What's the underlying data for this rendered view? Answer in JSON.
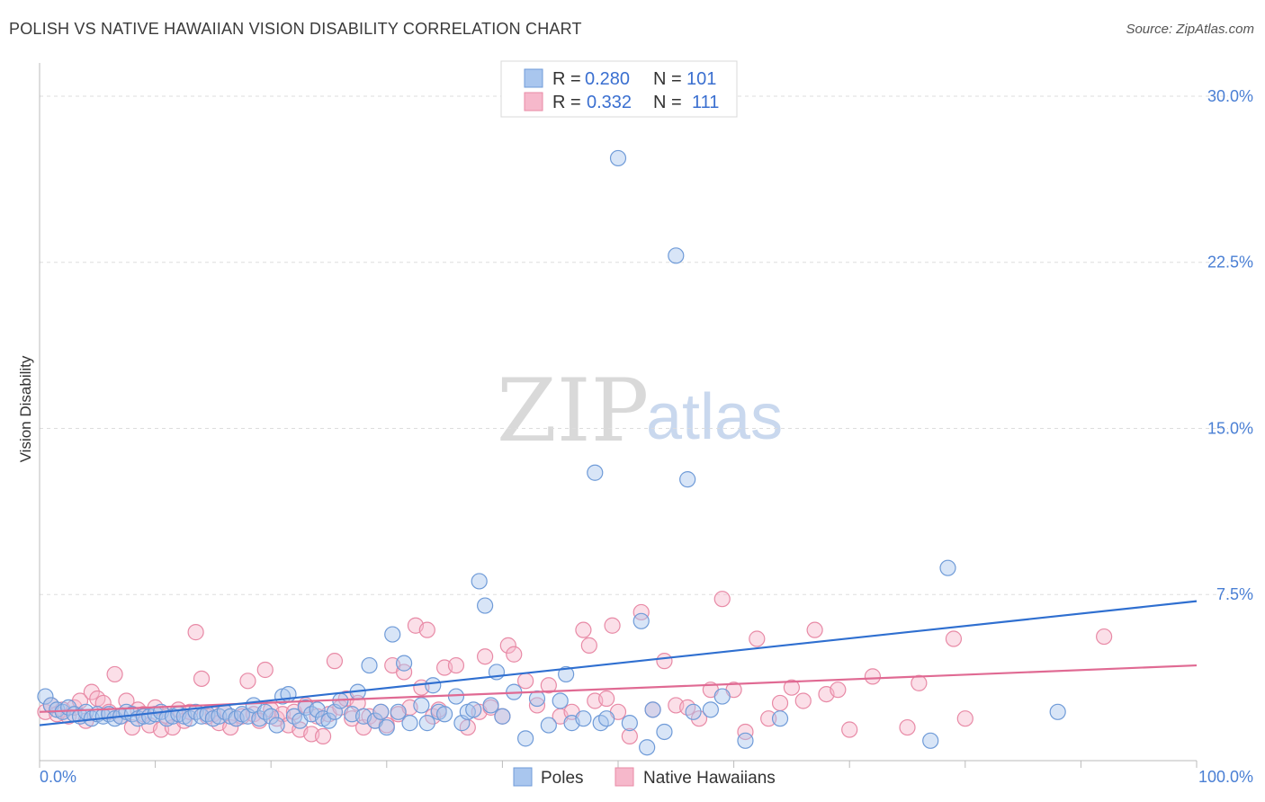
{
  "header": {
    "title": "POLISH VS NATIVE HAWAIIAN VISION DISABILITY CORRELATION CHART",
    "source": "Source: ZipAtlas.com"
  },
  "watermark": {
    "zip": "ZIP",
    "atlas": "atlas"
  },
  "colors": {
    "poles_fill": "#a9c6ee",
    "poles_stroke": "#6f9bd8",
    "poles_line": "#2f6fd0",
    "hawaiians_fill": "#f6b8cb",
    "hawaiians_stroke": "#e88aa6",
    "hawaiians_line": "#e06a93",
    "grid": "#dddddd",
    "tick_text": "#4a7fd4"
  },
  "legend": {
    "rows": [
      {
        "r_label": "R =",
        "r_value": "0.280",
        "n_label": "N =",
        "n_value": "101"
      },
      {
        "r_label": "R =",
        "r_value": "0.332",
        "n_label": "N =",
        "n_value": "111"
      }
    ]
  },
  "chart_data": {
    "type": "scatter",
    "title": "POLISH VS NATIVE HAWAIIAN VISION DISABILITY CORRELATION CHART",
    "xlabel": "",
    "ylabel": "Vision Disability",
    "xlim": [
      0,
      100
    ],
    "ylim": [
      0,
      31.5
    ],
    "x_tick_labels": [
      "0.0%",
      "100.0%"
    ],
    "y_ticks": [
      7.5,
      15.0,
      22.5,
      30.0
    ],
    "y_tick_labels": [
      "7.5%",
      "15.0%",
      "22.5%",
      "30.0%"
    ],
    "grid": "horizontal dashed",
    "legend_position": "top-center",
    "series": [
      {
        "name": "Poles",
        "r": 0.28,
        "n": 101,
        "trend": {
          "x": [
            0,
            100
          ],
          "y": [
            1.6,
            7.2
          ]
        },
        "points": [
          [
            0.5,
            2.9
          ],
          [
            1,
            2.5
          ],
          [
            1.5,
            2.3
          ],
          [
            2,
            2.2
          ],
          [
            2.5,
            2.4
          ],
          [
            3,
            2.1
          ],
          [
            3.5,
            2.0
          ],
          [
            4,
            2.2
          ],
          [
            4.5,
            1.9
          ],
          [
            5,
            2.1
          ],
          [
            5.5,
            2.0
          ],
          [
            6,
            2.1
          ],
          [
            6.5,
            1.9
          ],
          [
            7,
            2.0
          ],
          [
            7.5,
            2.2
          ],
          [
            8,
            2.1
          ],
          [
            8.5,
            1.9
          ],
          [
            9,
            2.0
          ],
          [
            9.5,
            2.0
          ],
          [
            10,
            2.1
          ],
          [
            10.5,
            2.2
          ],
          [
            11,
            1.9
          ],
          [
            11.5,
            2.0
          ],
          [
            12,
            2.1
          ],
          [
            12.5,
            2.0
          ],
          [
            13,
            1.9
          ],
          [
            13.5,
            2.2
          ],
          [
            14,
            2.0
          ],
          [
            14.5,
            2.1
          ],
          [
            15,
            1.9
          ],
          [
            15.5,
            2.0
          ],
          [
            16,
            2.2
          ],
          [
            16.5,
            2.0
          ],
          [
            17,
            1.9
          ],
          [
            17.5,
            2.1
          ],
          [
            18,
            2.0
          ],
          [
            18.5,
            2.5
          ],
          [
            19,
            1.9
          ],
          [
            19.5,
            2.2
          ],
          [
            20,
            2.0
          ],
          [
            20.5,
            1.6
          ],
          [
            21,
            2.9
          ],
          [
            21.5,
            3.0
          ],
          [
            22,
            2.0
          ],
          [
            22.5,
            1.8
          ],
          [
            23,
            2.4
          ],
          [
            23.5,
            2.1
          ],
          [
            24,
            2.3
          ],
          [
            24.5,
            1.9
          ],
          [
            25,
            1.8
          ],
          [
            25.5,
            2.2
          ],
          [
            26,
            2.7
          ],
          [
            27,
            2.1
          ],
          [
            27.5,
            3.1
          ],
          [
            28,
            2.0
          ],
          [
            28.5,
            4.3
          ],
          [
            29,
            1.8
          ],
          [
            29.5,
            2.2
          ],
          [
            30,
            1.5
          ],
          [
            30.5,
            5.7
          ],
          [
            31,
            2.2
          ],
          [
            31.5,
            4.4
          ],
          [
            32,
            1.7
          ],
          [
            33,
            2.5
          ],
          [
            33.5,
            1.7
          ],
          [
            34,
            3.4
          ],
          [
            34.5,
            2.2
          ],
          [
            35,
            2.1
          ],
          [
            36,
            2.9
          ],
          [
            36.5,
            1.7
          ],
          [
            37,
            2.2
          ],
          [
            37.5,
            2.3
          ],
          [
            38,
            8.1
          ],
          [
            38.5,
            7.0
          ],
          [
            39,
            2.5
          ],
          [
            39.5,
            4.0
          ],
          [
            40,
            2.0
          ],
          [
            41,
            3.1
          ],
          [
            42,
            1.0
          ],
          [
            43,
            2.8
          ],
          [
            44,
            1.6
          ],
          [
            45,
            2.7
          ],
          [
            45.5,
            3.9
          ],
          [
            46,
            1.7
          ],
          [
            47,
            1.9
          ],
          [
            48,
            13.0
          ],
          [
            48.5,
            1.7
          ],
          [
            49,
            1.9
          ],
          [
            50,
            27.2
          ],
          [
            51,
            1.7
          ],
          [
            52,
            6.3
          ],
          [
            52.5,
            0.6
          ],
          [
            53,
            2.3
          ],
          [
            54,
            1.3
          ],
          [
            55,
            22.8
          ],
          [
            56,
            12.7
          ],
          [
            56.5,
            2.2
          ],
          [
            58,
            2.3
          ],
          [
            59,
            2.9
          ],
          [
            61,
            0.9
          ],
          [
            64,
            1.9
          ],
          [
            77,
            0.9
          ],
          [
            78.5,
            8.7
          ],
          [
            88,
            2.2
          ]
        ]
      },
      {
        "name": "Native Hawaiians",
        "r": 0.332,
        "n": 111,
        "trend": {
          "x": [
            0,
            100
          ],
          "y": [
            2.2,
            4.3
          ]
        },
        "points": [
          [
            0.5,
            2.2
          ],
          [
            1,
            2.5
          ],
          [
            1.5,
            2.1
          ],
          [
            2,
            2.3
          ],
          [
            2.5,
            2.0
          ],
          [
            3,
            2.4
          ],
          [
            3.5,
            2.7
          ],
          [
            4,
            1.8
          ],
          [
            4.5,
            3.1
          ],
          [
            5,
            2.8
          ],
          [
            5.5,
            2.6
          ],
          [
            6,
            2.2
          ],
          [
            6.5,
            3.9
          ],
          [
            7,
            2.0
          ],
          [
            7.5,
            2.7
          ],
          [
            8,
            1.5
          ],
          [
            8.5,
            2.3
          ],
          [
            9,
            2.1
          ],
          [
            9.5,
            1.6
          ],
          [
            10,
            2.4
          ],
          [
            10.5,
            1.4
          ],
          [
            11,
            2.0
          ],
          [
            11.5,
            1.5
          ],
          [
            12,
            2.3
          ],
          [
            12.5,
            1.8
          ],
          [
            13,
            2.2
          ],
          [
            13.5,
            5.8
          ],
          [
            14,
            3.7
          ],
          [
            14.5,
            2.0
          ],
          [
            15,
            2.1
          ],
          [
            15.5,
            1.7
          ],
          [
            16,
            2.2
          ],
          [
            16.5,
            1.5
          ],
          [
            17,
            1.9
          ],
          [
            17.5,
            2.0
          ],
          [
            18,
            3.6
          ],
          [
            18.5,
            2.1
          ],
          [
            19,
            1.8
          ],
          [
            19.5,
            4.1
          ],
          [
            20,
            2.3
          ],
          [
            20.5,
            1.9
          ],
          [
            21,
            2.1
          ],
          [
            21.5,
            1.6
          ],
          [
            22,
            2.2
          ],
          [
            22.5,
            1.4
          ],
          [
            23,
            2.5
          ],
          [
            23.5,
            1.2
          ],
          [
            24,
            2.0
          ],
          [
            24.5,
            1.1
          ],
          [
            25,
            2.1
          ],
          [
            25.5,
            4.5
          ],
          [
            26,
            2.4
          ],
          [
            26.5,
            2.8
          ],
          [
            27,
            1.9
          ],
          [
            27.5,
            2.6
          ],
          [
            28,
            1.5
          ],
          [
            28.5,
            2.0
          ],
          [
            29,
            1.8
          ],
          [
            29.5,
            2.2
          ],
          [
            30,
            1.6
          ],
          [
            30.5,
            4.3
          ],
          [
            31,
            2.1
          ],
          [
            31.5,
            4.0
          ],
          [
            32,
            2.4
          ],
          [
            32.5,
            6.1
          ],
          [
            33,
            3.3
          ],
          [
            33.5,
            5.9
          ],
          [
            34,
            2.0
          ],
          [
            34.5,
            2.3
          ],
          [
            35,
            4.2
          ],
          [
            36,
            4.3
          ],
          [
            37,
            1.5
          ],
          [
            38,
            2.2
          ],
          [
            38.5,
            4.7
          ],
          [
            39,
            2.4
          ],
          [
            40,
            2.0
          ],
          [
            40.5,
            5.2
          ],
          [
            41,
            4.8
          ],
          [
            42,
            3.6
          ],
          [
            43,
            2.5
          ],
          [
            44,
            3.4
          ],
          [
            45,
            2.0
          ],
          [
            46,
            2.2
          ],
          [
            47,
            5.9
          ],
          [
            47.5,
            5.2
          ],
          [
            48,
            2.7
          ],
          [
            49,
            2.8
          ],
          [
            49.5,
            6.1
          ],
          [
            50,
            2.2
          ],
          [
            51,
            1.1
          ],
          [
            52,
            6.7
          ],
          [
            53,
            2.3
          ],
          [
            54,
            4.5
          ],
          [
            55,
            2.5
          ],
          [
            56,
            2.4
          ],
          [
            57,
            1.9
          ],
          [
            58,
            3.2
          ],
          [
            59,
            7.3
          ],
          [
            60,
            3.2
          ],
          [
            61,
            1.3
          ],
          [
            62,
            5.5
          ],
          [
            63,
            1.9
          ],
          [
            64,
            2.6
          ],
          [
            65,
            3.3
          ],
          [
            66,
            2.7
          ],
          [
            67,
            5.9
          ],
          [
            68,
            3.0
          ],
          [
            69,
            3.2
          ],
          [
            70,
            1.4
          ],
          [
            72,
            3.8
          ],
          [
            75,
            1.5
          ],
          [
            76,
            3.5
          ],
          [
            79,
            5.5
          ],
          [
            80,
            1.9
          ],
          [
            92,
            5.6
          ]
        ]
      }
    ]
  },
  "bottom_legend": {
    "items": [
      {
        "label": "Poles"
      },
      {
        "label": "Native Hawaiians"
      }
    ]
  }
}
